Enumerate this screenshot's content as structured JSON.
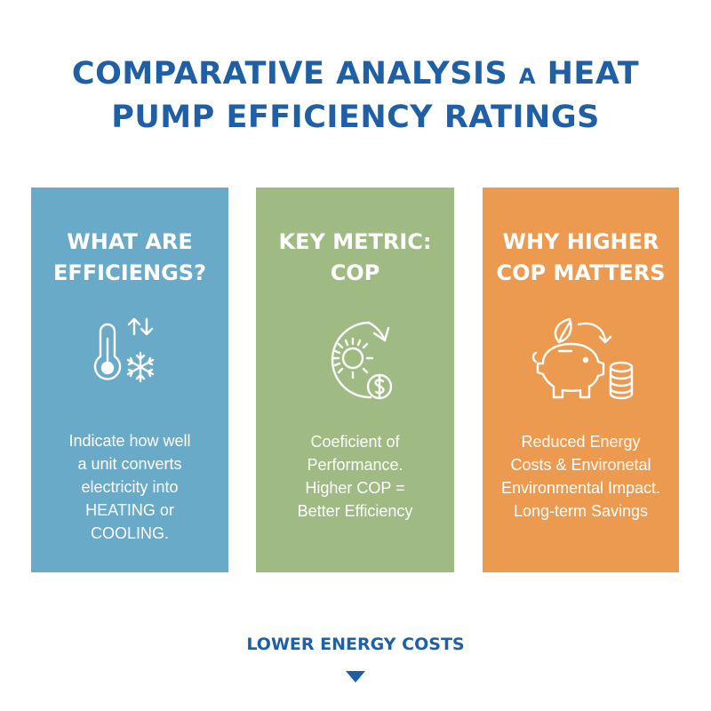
{
  "header": {
    "title_part1": "COMPARATIVE ANALYSIS",
    "title_connector": "A",
    "title_part2": "HEAT",
    "title_line2": "PUMP EFFICIENCY RATINGS"
  },
  "cards": [
    {
      "heading": [
        "WHAT ARE",
        "EFFICIENGS?"
      ],
      "icon": "thermometer-snowflake-icon",
      "text": [
        "Indicate how well",
        "a unit converts",
        "electricity into",
        "HEATING or",
        "COOLING."
      ],
      "color": "#6aaac9"
    },
    {
      "heading": [
        "KEY METRIC:",
        "COP"
      ],
      "icon": "sun-dollar-icon",
      "text": [
        "Coeficient of",
        "Performance.",
        "Higher COP =",
        "Better Efficiency"
      ],
      "color": "#9fbb83"
    },
    {
      "heading": [
        "WHY HIGHER",
        "COP MATTERS"
      ],
      "icon": "piggy-bank-coins-icon",
      "text": [
        "Reduced Energy",
        "Costs & Environetal",
        "Environmental Impact.",
        "Long-term Savings"
      ],
      "color": "#eb9a50"
    }
  ],
  "footer": {
    "label": "LOWER ENERGY COSTS",
    "icon": "arrow-down-icon"
  },
  "colors": {
    "title": "#1f5fa6",
    "background": "#ffffff"
  }
}
